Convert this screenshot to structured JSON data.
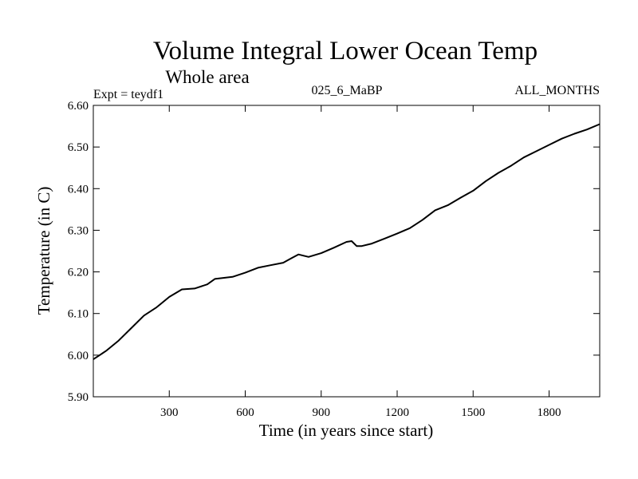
{
  "chart_data": {
    "type": "line",
    "title": "Volume Integral Lower Ocean Temp",
    "subtitle": "Whole area",
    "expt_label": "Expt = teydf1",
    "run_label": "025_6_MaBP",
    "months_label": "ALL_MONTHS",
    "xlabel": "Time (in years since start)",
    "ylabel": "Temperature (in C)",
    "xlim": [
      0,
      2000
    ],
    "ylim": [
      5.9,
      6.6
    ],
    "xticks": [
      300,
      600,
      900,
      1200,
      1500,
      1800
    ],
    "yticks": [
      "5.90",
      "6.00",
      "6.10",
      "6.20",
      "6.30",
      "6.40",
      "6.50",
      "6.60"
    ],
    "grid": false,
    "series": [
      {
        "name": "Volume integral lower ocean temperature",
        "color": "#000000",
        "x": [
          0,
          25,
          50,
          100,
          150,
          200,
          250,
          300,
          350,
          400,
          450,
          480,
          550,
          600,
          650,
          700,
          750,
          780,
          810,
          850,
          900,
          950,
          1000,
          1020,
          1040,
          1060,
          1100,
          1150,
          1200,
          1250,
          1300,
          1350,
          1400,
          1450,
          1500,
          1550,
          1600,
          1650,
          1700,
          1750,
          1800,
          1850,
          1900,
          1950,
          2000
        ],
        "y": [
          5.99,
          6.0,
          6.01,
          6.035,
          6.065,
          6.095,
          6.115,
          6.14,
          6.158,
          6.16,
          6.17,
          6.183,
          6.188,
          6.198,
          6.21,
          6.216,
          6.222,
          6.232,
          6.242,
          6.236,
          6.245,
          6.258,
          6.272,
          6.274,
          6.262,
          6.262,
          6.268,
          6.28,
          6.292,
          6.305,
          6.325,
          6.348,
          6.36,
          6.378,
          6.395,
          6.418,
          6.438,
          6.455,
          6.475,
          6.49,
          6.505,
          6.52,
          6.532,
          6.542,
          6.555
        ]
      }
    ]
  }
}
